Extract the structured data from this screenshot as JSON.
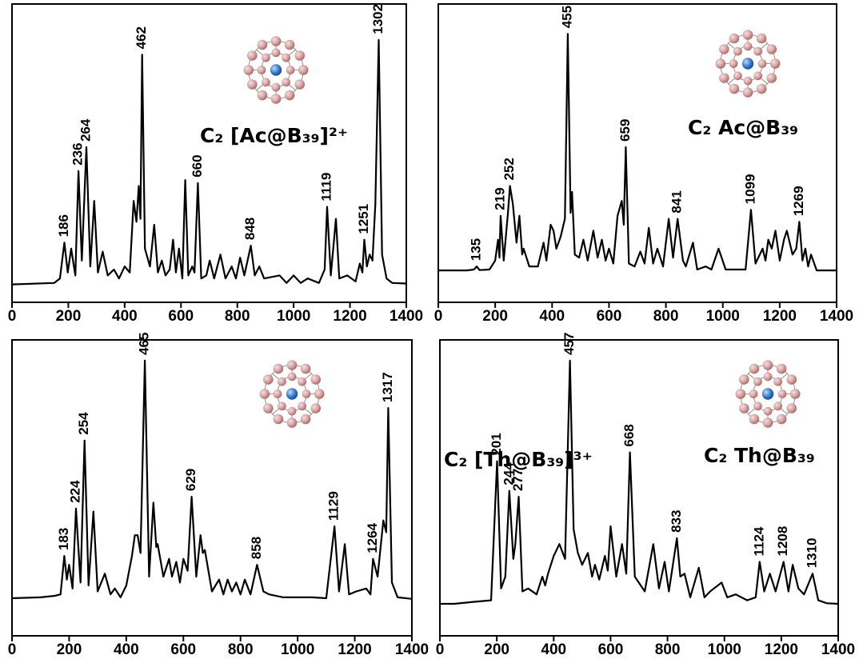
{
  "chart_data": [
    {
      "type": "line",
      "title": "C₂ [Ac@B₃₉]²⁺",
      "xlim": [
        0,
        1400
      ],
      "ylim": [
        0,
        100
      ],
      "xticks": [
        0,
        200,
        400,
        600,
        800,
        1000,
        1200,
        1400
      ],
      "series": [
        {
          "color": "#000000",
          "x": [
            0,
            150,
            170,
            186,
            198,
            210,
            225,
            236,
            248,
            264,
            278,
            292,
            305,
            322,
            340,
            362,
            380,
            400,
            418,
            432,
            442,
            450,
            456,
            462,
            472,
            490,
            505,
            518,
            532,
            545,
            560,
            572,
            582,
            593,
            605,
            615,
            626,
            640,
            648,
            660,
            672,
            690,
            702,
            718,
            740,
            758,
            780,
            795,
            810,
            825,
            848,
            862,
            878,
            895,
            950,
            975,
            1000,
            1025,
            1050,
            1090,
            1110,
            1119,
            1132,
            1150,
            1162,
            1190,
            1220,
            1235,
            1244,
            1251,
            1260,
            1270,
            1280,
            1290,
            1302,
            1314,
            1330,
            1350,
            1400
          ],
          "values": [
            6,
            6.5,
            8,
            20,
            10,
            18,
            9,
            44,
            14,
            52,
            12,
            34,
            10,
            17,
            9,
            11,
            8,
            12,
            10,
            34,
            27,
            39,
            28,
            83,
            18,
            12,
            26,
            10,
            14,
            9,
            11,
            21,
            10,
            18,
            8,
            41,
            9,
            12,
            10,
            40,
            8,
            9,
            14,
            8,
            16,
            8,
            12,
            8,
            15,
            9,
            19,
            9,
            12,
            8,
            9,
            6.5,
            9,
            6.5,
            8,
            6.5,
            11,
            32,
            9,
            28,
            8,
            9,
            7,
            13,
            10,
            21,
            12,
            16,
            14,
            33,
            88,
            16,
            8,
            6.5,
            6.3
          ]
        }
      ],
      "peak_labels": [
        186,
        236,
        264,
        462,
        660,
        848,
        1119,
        1251,
        1302
      ]
    },
    {
      "type": "line",
      "title": "C₂ Ac@B₃₉",
      "xlim": [
        0,
        1400
      ],
      "ylim": [
        0,
        100
      ],
      "xticks": [
        0,
        200,
        400,
        600,
        800,
        1000,
        1200,
        1400
      ],
      "series": [
        {
          "color": "#000000",
          "x": [
            0,
            100,
            125,
            135,
            145,
            180,
            200,
            210,
            215,
            219,
            230,
            245,
            252,
            262,
            275,
            285,
            295,
            300,
            320,
            350,
            370,
            380,
            395,
            405,
            415,
            430,
            445,
            455,
            465,
            470,
            480,
            495,
            510,
            525,
            545,
            560,
            575,
            588,
            600,
            615,
            630,
            645,
            652,
            659,
            670,
            690,
            710,
            725,
            740,
            755,
            770,
            790,
            810,
            825,
            841,
            860,
            870,
            895,
            910,
            940,
            960,
            985,
            1010,
            1040,
            1080,
            1099,
            1115,
            1140,
            1150,
            1160,
            1172,
            1185,
            1200,
            1215,
            1225,
            1245,
            1258,
            1269,
            1280,
            1290,
            1300,
            1310,
            1330,
            1400
          ],
          "values": [
            10.7,
            10.7,
            11,
            12,
            10.8,
            11,
            14,
            21,
            15,
            29,
            14,
            30,
            39,
            33,
            20,
            29,
            16,
            18,
            12,
            12,
            20,
            14,
            26,
            24,
            18,
            22,
            28,
            90,
            30,
            37,
            16,
            15,
            21,
            14,
            24,
            15,
            21,
            14,
            18,
            13,
            29,
            34,
            26,
            52,
            13,
            12,
            17,
            13,
            25,
            13,
            18,
            12,
            28,
            15,
            28,
            14,
            12,
            20,
            11,
            12,
            11,
            18,
            11,
            11,
            11,
            31,
            13,
            18,
            14,
            21,
            18,
            24,
            14,
            21,
            24,
            16,
            18,
            27,
            14,
            18,
            12,
            16,
            10.7,
            10.7
          ]
        }
      ],
      "peak_labels": [
        135,
        219,
        252,
        455,
        659,
        841,
        1099,
        1269
      ]
    },
    {
      "type": "line",
      "title": "C₂ [Th@B₃₉]³⁺",
      "xlim": [
        0,
        1400
      ],
      "ylim": [
        0,
        100
      ],
      "xticks": [
        0,
        200,
        400,
        600,
        800,
        1000,
        1200,
        1400
      ],
      "series": [
        {
          "color": "#000000",
          "x": [
            0,
            100,
            150,
            170,
            183,
            192,
            200,
            212,
            224,
            240,
            254,
            268,
            285,
            300,
            325,
            345,
            360,
            380,
            400,
            420,
            430,
            440,
            450,
            465,
            480,
            495,
            505,
            510,
            530,
            550,
            560,
            575,
            588,
            600,
            615,
            629,
            645,
            660,
            668,
            675,
            700,
            725,
            740,
            755,
            770,
            785,
            800,
            815,
            835,
            858,
            880,
            900,
            950,
            1000,
            1050,
            1100,
            1129,
            1145,
            1165,
            1180,
            1205,
            1240,
            1255,
            1264,
            1280,
            1300,
            1310,
            1317,
            1330,
            1350,
            1400
          ],
          "values": [
            12.7,
            13,
            13.5,
            14,
            27,
            19,
            24,
            16,
            43,
            18,
            66,
            17,
            42,
            15,
            21,
            14,
            16,
            13,
            17,
            27,
            34,
            34,
            28,
            93,
            20,
            45,
            30,
            31,
            20,
            26,
            20,
            25,
            18,
            26,
            22,
            47,
            20,
            34,
            28,
            29,
            15,
            19,
            14,
            19,
            15,
            18,
            14,
            19,
            14,
            24,
            15,
            14,
            13,
            13,
            13,
            12.7,
            37,
            15,
            31,
            14,
            15,
            16,
            14,
            26,
            20,
            39,
            35,
            77,
            18,
            13,
            12.5
          ]
        }
      ],
      "peak_labels": [
        183,
        224,
        254,
        465,
        629,
        858,
        1129,
        1264,
        1317
      ]
    },
    {
      "type": "line",
      "title": "C₂ Th@B₃₉",
      "xlim": [
        0,
        1400
      ],
      "ylim": [
        0,
        100
      ],
      "xticks": [
        0,
        200,
        400,
        600,
        800,
        1000,
        1200,
        1400
      ],
      "series": [
        {
          "color": "#000000",
          "x": [
            0,
            50,
            120,
            180,
            201,
            215,
            230,
            244,
            258,
            265,
            277,
            290,
            310,
            340,
            360,
            370,
            380,
            400,
            420,
            440,
            457,
            470,
            485,
            500,
            520,
            535,
            545,
            560,
            580,
            590,
            600,
            620,
            640,
            655,
            668,
            685,
            720,
            750,
            770,
            790,
            805,
            833,
            845,
            860,
            880,
            910,
            930,
            950,
            990,
            1010,
            1040,
            1080,
            1110,
            1124,
            1140,
            1160,
            1180,
            1208,
            1225,
            1240,
            1260,
            1280,
            1310,
            1330,
            1360,
            1400
          ],
          "values": [
            10.8,
            10.8,
            11.5,
            12,
            59,
            16,
            20,
            49,
            26,
            31,
            47,
            15,
            16,
            14,
            20,
            17,
            21,
            27,
            31,
            26,
            93,
            36,
            28,
            24,
            28,
            20,
            24,
            19,
            27,
            22,
            37,
            20,
            31,
            21,
            62,
            20,
            15,
            31,
            16,
            25,
            15,
            33,
            20,
            21,
            13,
            23,
            13,
            15,
            18,
            13,
            14,
            12,
            13,
            25,
            15,
            21,
            15,
            25,
            15,
            24,
            16,
            14,
            21,
            12,
            11,
            10.8
          ]
        }
      ],
      "peak_labels": [
        201,
        244,
        277,
        457,
        668,
        833,
        1124,
        1208,
        1310
      ]
    }
  ]
}
